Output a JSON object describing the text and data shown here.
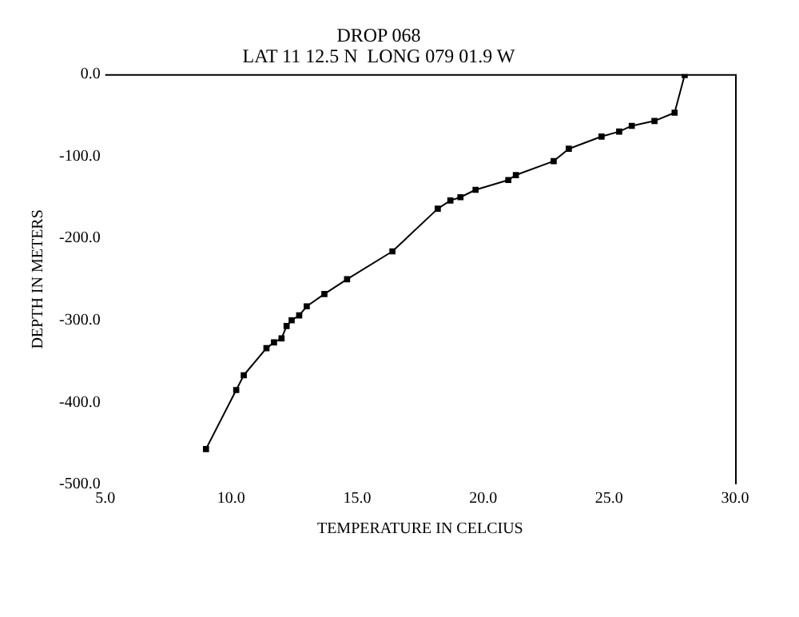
{
  "chart_data": {
    "type": "line",
    "title": "DROP 068",
    "subtitle": "LAT 11 12.5 N  LONG 079 01.9 W",
    "xlabel": "TEMPERATURE IN CELCIUS",
    "ylabel": "DEPTH IN METERS",
    "series": [
      {
        "color": "#000000",
        "x": [
          28.0,
          27.6,
          26.8,
          25.9,
          25.4,
          24.7,
          23.4,
          22.8,
          21.3,
          21.0,
          19.7,
          19.1,
          18.7,
          18.2,
          16.4,
          14.6,
          13.7,
          13.0,
          12.7,
          12.4,
          12.2,
          12.0,
          11.7,
          11.4,
          10.5,
          10.2,
          9.0
        ],
        "values": [
          -1,
          -47,
          -57,
          -63,
          -70,
          -76,
          -91,
          -106,
          -123,
          -129,
          -141,
          -150,
          -154,
          -164,
          -216,
          -250,
          -268,
          -283,
          -294,
          -300,
          -307,
          -322,
          -327,
          -334,
          -367,
          -385,
          -457
        ]
      }
    ],
    "xlim": [
      5,
      30
    ],
    "xticks": [
      {
        "value": 5,
        "label": "5.0"
      },
      {
        "value": 10,
        "label": "10.0"
      },
      {
        "value": 15,
        "label": "15.0"
      },
      {
        "value": 20,
        "label": "20.0"
      },
      {
        "value": 25,
        "label": "25.0"
      },
      {
        "value": 30,
        "label": "30.0"
      }
    ],
    "ylim": [
      -500,
      0
    ],
    "yticks": [
      {
        "value": -500,
        "label": "-500.0"
      },
      {
        "value": -400,
        "label": "-400.0"
      },
      {
        "value": -300,
        "label": "-300.0"
      },
      {
        "value": -200,
        "label": "-200.0"
      },
      {
        "value": -100,
        "label": "-100.0"
      },
      {
        "value": 0,
        "label": "0.0"
      }
    ],
    "grid": false,
    "legend": false,
    "marker": "square",
    "line_style": "solid"
  }
}
